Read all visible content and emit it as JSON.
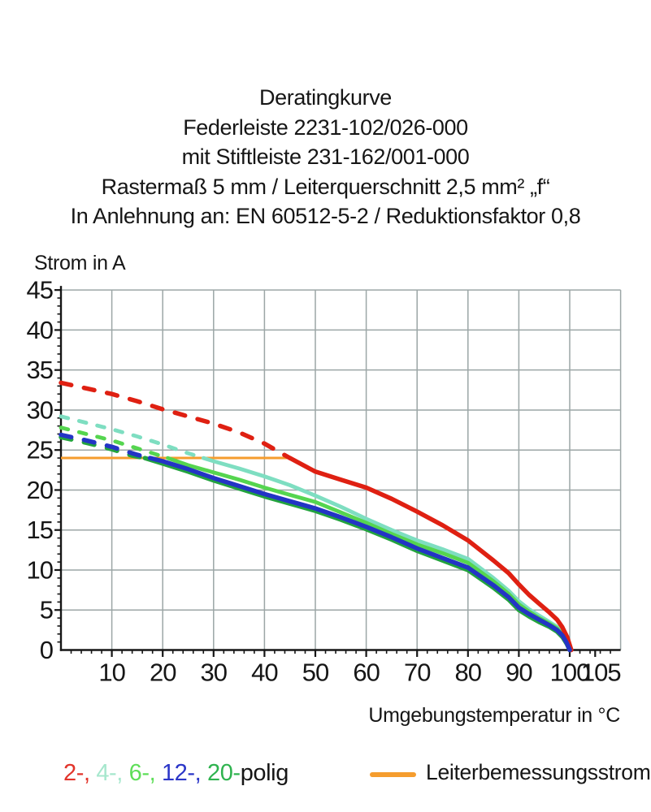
{
  "title": {
    "lines": [
      "Deratingkurve",
      "Federleiste 2231-102/026-000",
      "mit Stiftleiste 231-162/001-000",
      "Rastermaß 5 mm / Leiterquerschnitt 2,5 mm² „f“",
      "In Anlehnung an: EN 60512-5-2 / Reduktionsfaktor 0,8"
    ]
  },
  "chart_data": {
    "type": "line",
    "ylabel": "Strom in A",
    "xlabel": "Umgebungstemperatur in °C",
    "xlim": [
      0,
      110
    ],
    "ylim": [
      0,
      45
    ],
    "x_gridline_step": 10,
    "y_gridline_step": 5,
    "x_minor_tick_step": 2,
    "y_minor_tick_step": 1,
    "x_tick_labels": [
      10,
      20,
      30,
      40,
      50,
      60,
      70,
      80,
      90,
      100,
      105
    ],
    "y_tick_labels": [
      0,
      5,
      10,
      15,
      20,
      25,
      30,
      35,
      40,
      45
    ],
    "grid_color": "#9ca6a6",
    "axis_color": "#161616",
    "rated_line": {
      "label": "Leiterbemessungsstrom",
      "value_a": 24,
      "x_start": 0,
      "x_end": 45,
      "color": "#f59d2e"
    },
    "series": [
      {
        "name": "4-polig",
        "color": "#7edec1",
        "width": 4.8,
        "solid_from_x": 28,
        "points": [
          [
            0,
            29.2
          ],
          [
            5,
            28.4
          ],
          [
            10,
            27.6
          ],
          [
            15,
            26.7
          ],
          [
            20,
            25.7
          ],
          [
            24,
            24.8
          ],
          [
            28,
            24
          ],
          [
            30,
            23.6
          ],
          [
            35,
            22.7
          ],
          [
            40,
            21.7
          ],
          [
            45,
            20.6
          ],
          [
            50,
            19.3
          ],
          [
            55,
            17.9
          ],
          [
            60,
            16.4
          ],
          [
            65,
            15.0
          ],
          [
            70,
            13.7
          ],
          [
            75,
            12.6
          ],
          [
            80,
            11.4
          ],
          [
            85,
            9.0
          ],
          [
            88,
            7.4
          ],
          [
            90,
            6.1
          ],
          [
            92,
            5.1
          ],
          [
            94,
            4.3
          ],
          [
            96,
            3.5
          ],
          [
            97.5,
            2.9
          ],
          [
            98.6,
            2.1
          ],
          [
            99.4,
            1.1
          ],
          [
            100,
            0
          ]
        ]
      },
      {
        "name": "6-polig",
        "color": "#55d54f",
        "width": 4.8,
        "solid_from_x": 21,
        "points": [
          [
            0,
            27.8
          ],
          [
            5,
            27.0
          ],
          [
            10,
            26.2
          ],
          [
            15,
            25.2
          ],
          [
            21,
            24
          ],
          [
            25,
            23.1
          ],
          [
            30,
            22.2
          ],
          [
            35,
            21.3
          ],
          [
            40,
            20.3
          ],
          [
            45,
            19.4
          ],
          [
            50,
            18.5
          ],
          [
            55,
            17.2
          ],
          [
            60,
            15.9
          ],
          [
            65,
            14.5
          ],
          [
            70,
            13.2
          ],
          [
            75,
            12.1
          ],
          [
            80,
            10.9
          ],
          [
            85,
            8.6
          ],
          [
            88,
            7.0
          ],
          [
            90,
            5.7
          ],
          [
            92,
            4.8
          ],
          [
            94,
            4.0
          ],
          [
            96,
            3.3
          ],
          [
            97.5,
            2.7
          ],
          [
            98.6,
            1.9
          ],
          [
            99.4,
            1.0
          ],
          [
            100,
            0
          ]
        ]
      },
      {
        "name": "2-polig",
        "color": "#df2012",
        "width": 5.5,
        "solid_from_x": 45,
        "points": [
          [
            0,
            33.4
          ],
          [
            5,
            32.7
          ],
          [
            10,
            32.0
          ],
          [
            15,
            31.1
          ],
          [
            20,
            30.1
          ],
          [
            25,
            29.2
          ],
          [
            30,
            28.3
          ],
          [
            35,
            27.2
          ],
          [
            40,
            25.8
          ],
          [
            45,
            24
          ],
          [
            50,
            22.3
          ],
          [
            55,
            21.3
          ],
          [
            60,
            20.3
          ],
          [
            65,
            18.9
          ],
          [
            70,
            17.3
          ],
          [
            75,
            15.6
          ],
          [
            80,
            13.7
          ],
          [
            85,
            11.2
          ],
          [
            88,
            9.6
          ],
          [
            90,
            8.2
          ],
          [
            92,
            6.9
          ],
          [
            94,
            5.8
          ],
          [
            96,
            4.7
          ],
          [
            97.5,
            3.8
          ],
          [
            98.5,
            2.9
          ],
          [
            99.5,
            1.6
          ],
          [
            100.3,
            0
          ]
        ]
      },
      {
        "name": "20-polig",
        "color": "#23a33e",
        "width": 5.5,
        "solid_from_x": 16.5,
        "points": [
          [
            0,
            26.6
          ],
          [
            5,
            25.9
          ],
          [
            10,
            25.1
          ],
          [
            14,
            24.3
          ],
          [
            16.5,
            24
          ],
          [
            20,
            23.3
          ],
          [
            25,
            22.3
          ],
          [
            30,
            21.2
          ],
          [
            35,
            20.2
          ],
          [
            40,
            19.2
          ],
          [
            45,
            18.3
          ],
          [
            50,
            17.4
          ],
          [
            55,
            16.3
          ],
          [
            60,
            15.1
          ],
          [
            65,
            13.8
          ],
          [
            70,
            12.4
          ],
          [
            75,
            11.2
          ],
          [
            80,
            10.0
          ],
          [
            85,
            7.8
          ],
          [
            88,
            6.3
          ],
          [
            90,
            5.0
          ],
          [
            92,
            4.2
          ],
          [
            94,
            3.5
          ],
          [
            96,
            2.9
          ],
          [
            97.5,
            2.3
          ],
          [
            98.6,
            1.6
          ],
          [
            99.4,
            0.8
          ],
          [
            100,
            0
          ]
        ]
      },
      {
        "name": "12-polig",
        "color": "#2334c5",
        "width": 5.5,
        "solid_from_x": 17.5,
        "points": [
          [
            0,
            26.9
          ],
          [
            5,
            26.2
          ],
          [
            10,
            25.4
          ],
          [
            15,
            24.4
          ],
          [
            17.5,
            24
          ],
          [
            20,
            23.6
          ],
          [
            25,
            22.6
          ],
          [
            30,
            21.5
          ],
          [
            35,
            20.5
          ],
          [
            40,
            19.5
          ],
          [
            45,
            18.6
          ],
          [
            50,
            17.7
          ],
          [
            55,
            16.6
          ],
          [
            60,
            15.4
          ],
          [
            65,
            14.1
          ],
          [
            70,
            12.7
          ],
          [
            75,
            11.5
          ],
          [
            80,
            10.3
          ],
          [
            85,
            8.1
          ],
          [
            88,
            6.6
          ],
          [
            90,
            5.3
          ],
          [
            92,
            4.5
          ],
          [
            94,
            3.8
          ],
          [
            96,
            3.1
          ],
          [
            97.5,
            2.5
          ],
          [
            98.6,
            1.8
          ],
          [
            99.4,
            0.9
          ],
          [
            100,
            0
          ]
        ]
      }
    ]
  },
  "legend": {
    "series_parts": [
      {
        "text": "2-, ",
        "color": "#e2342b"
      },
      {
        "text": "4-, ",
        "color": "#a6e7cd"
      },
      {
        "text": "6-, ",
        "color": "#5ede58"
      },
      {
        "text": "12-, ",
        "color": "#2b36c8"
      },
      {
        "text": "20-",
        "color": "#2fb34f"
      },
      {
        "text": "polig",
        "color": "#161616"
      }
    ],
    "rated_label": "Leiterbemessungsstrom"
  }
}
